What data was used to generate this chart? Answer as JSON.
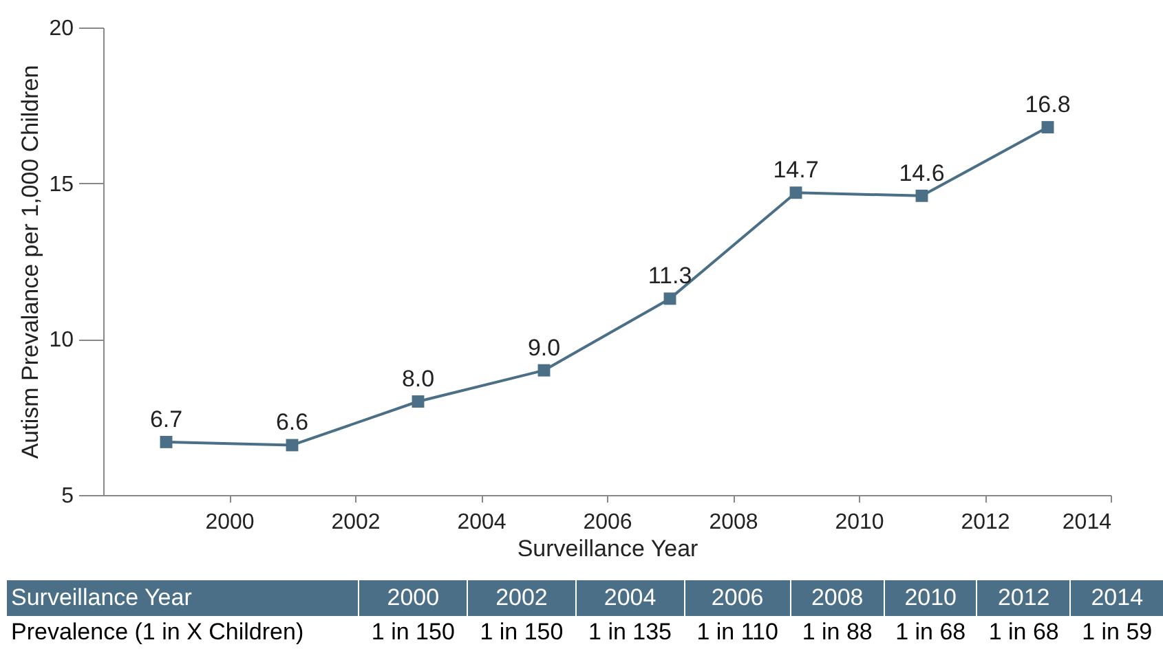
{
  "chart_data": {
    "type": "line",
    "xlabel": "Surveillance Year",
    "ylabel": "Autism Prevalance per 1,000 Children",
    "x": [
      1999,
      2001,
      2003,
      2005,
      2007,
      2009,
      2011,
      2013
    ],
    "values": [
      6.7,
      6.6,
      8.0,
      9.0,
      11.3,
      14.7,
      14.6,
      16.8
    ],
    "value_labels": [
      "6.7",
      "6.6",
      "8.0",
      "9.0",
      "11.3",
      "14.7",
      "14.6",
      "16.8"
    ],
    "color": "#4a6f86",
    "marker": "square",
    "grid": false,
    "xlim": [
      1998,
      2014
    ],
    "xticks": [
      2000,
      2002,
      2004,
      2006,
      2008,
      2010,
      2012,
      2014
    ],
    "ylim": [
      5,
      20
    ],
    "yticks": [
      5,
      10,
      15,
      20
    ],
    "annotations": [
      "Surveillance Year",
      "2000",
      "2002",
      "2004",
      "2006",
      "2008",
      "2010",
      "2012",
      "2014",
      "Prevalence (1 in X Children)",
      "1 in 150",
      "1 in 150",
      "1 in 135",
      "1 in 110",
      "1 in 88",
      "1 in 68",
      "1 in 68",
      "1 in 59"
    ]
  }
}
